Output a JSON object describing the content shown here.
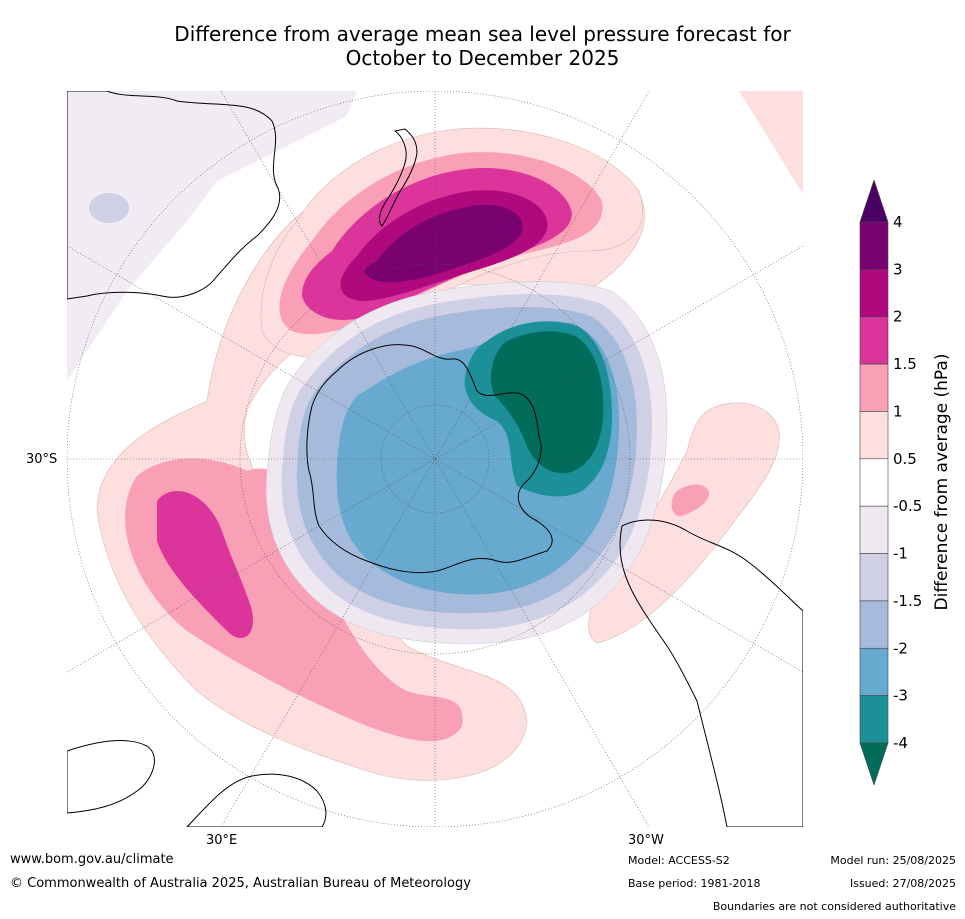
{
  "title_line1": "Difference from average mean sea level pressure forecast for",
  "title_line2": "October to December 2025",
  "map": {
    "lat_label": "30°S",
    "lon_label_left": "30°E",
    "lon_label_right": "30°W"
  },
  "colorbar": {
    "label": "Difference from average (hPa)",
    "ticks": [
      "4",
      "3",
      "2",
      "1.5",
      "1",
      "0.5",
      "-0.5",
      "-1",
      "-1.5",
      "-2",
      "-3",
      "-4"
    ],
    "colors": {
      "over": "#4b0066",
      "4": "#7a0170",
      "3": "#b0087d",
      "2": "#db349a",
      "1.5": "#f9a0b6",
      "1": "#fde0dd",
      "0.5": "#ffffff",
      "-0.5": "#efe8f1",
      "-1": "#cfd0e5",
      "-1.5": "#a6bbdb",
      "-2": "#67a9cf",
      "-3": "#1c9099",
      "under": "#016c59"
    }
  },
  "footer": {
    "website": "www.bom.gov.au/climate",
    "copyright": "© Commonwealth of Australia 2025, Australian Bureau of Meteorology",
    "model": "Model: ACCESS-S2",
    "base_period": "Base period: 1981-2018",
    "model_run": "Model run: 25/08/2025",
    "issued": "Issued: 27/08/2025",
    "disclaimer": "Boundaries are not considered authoritative"
  }
}
